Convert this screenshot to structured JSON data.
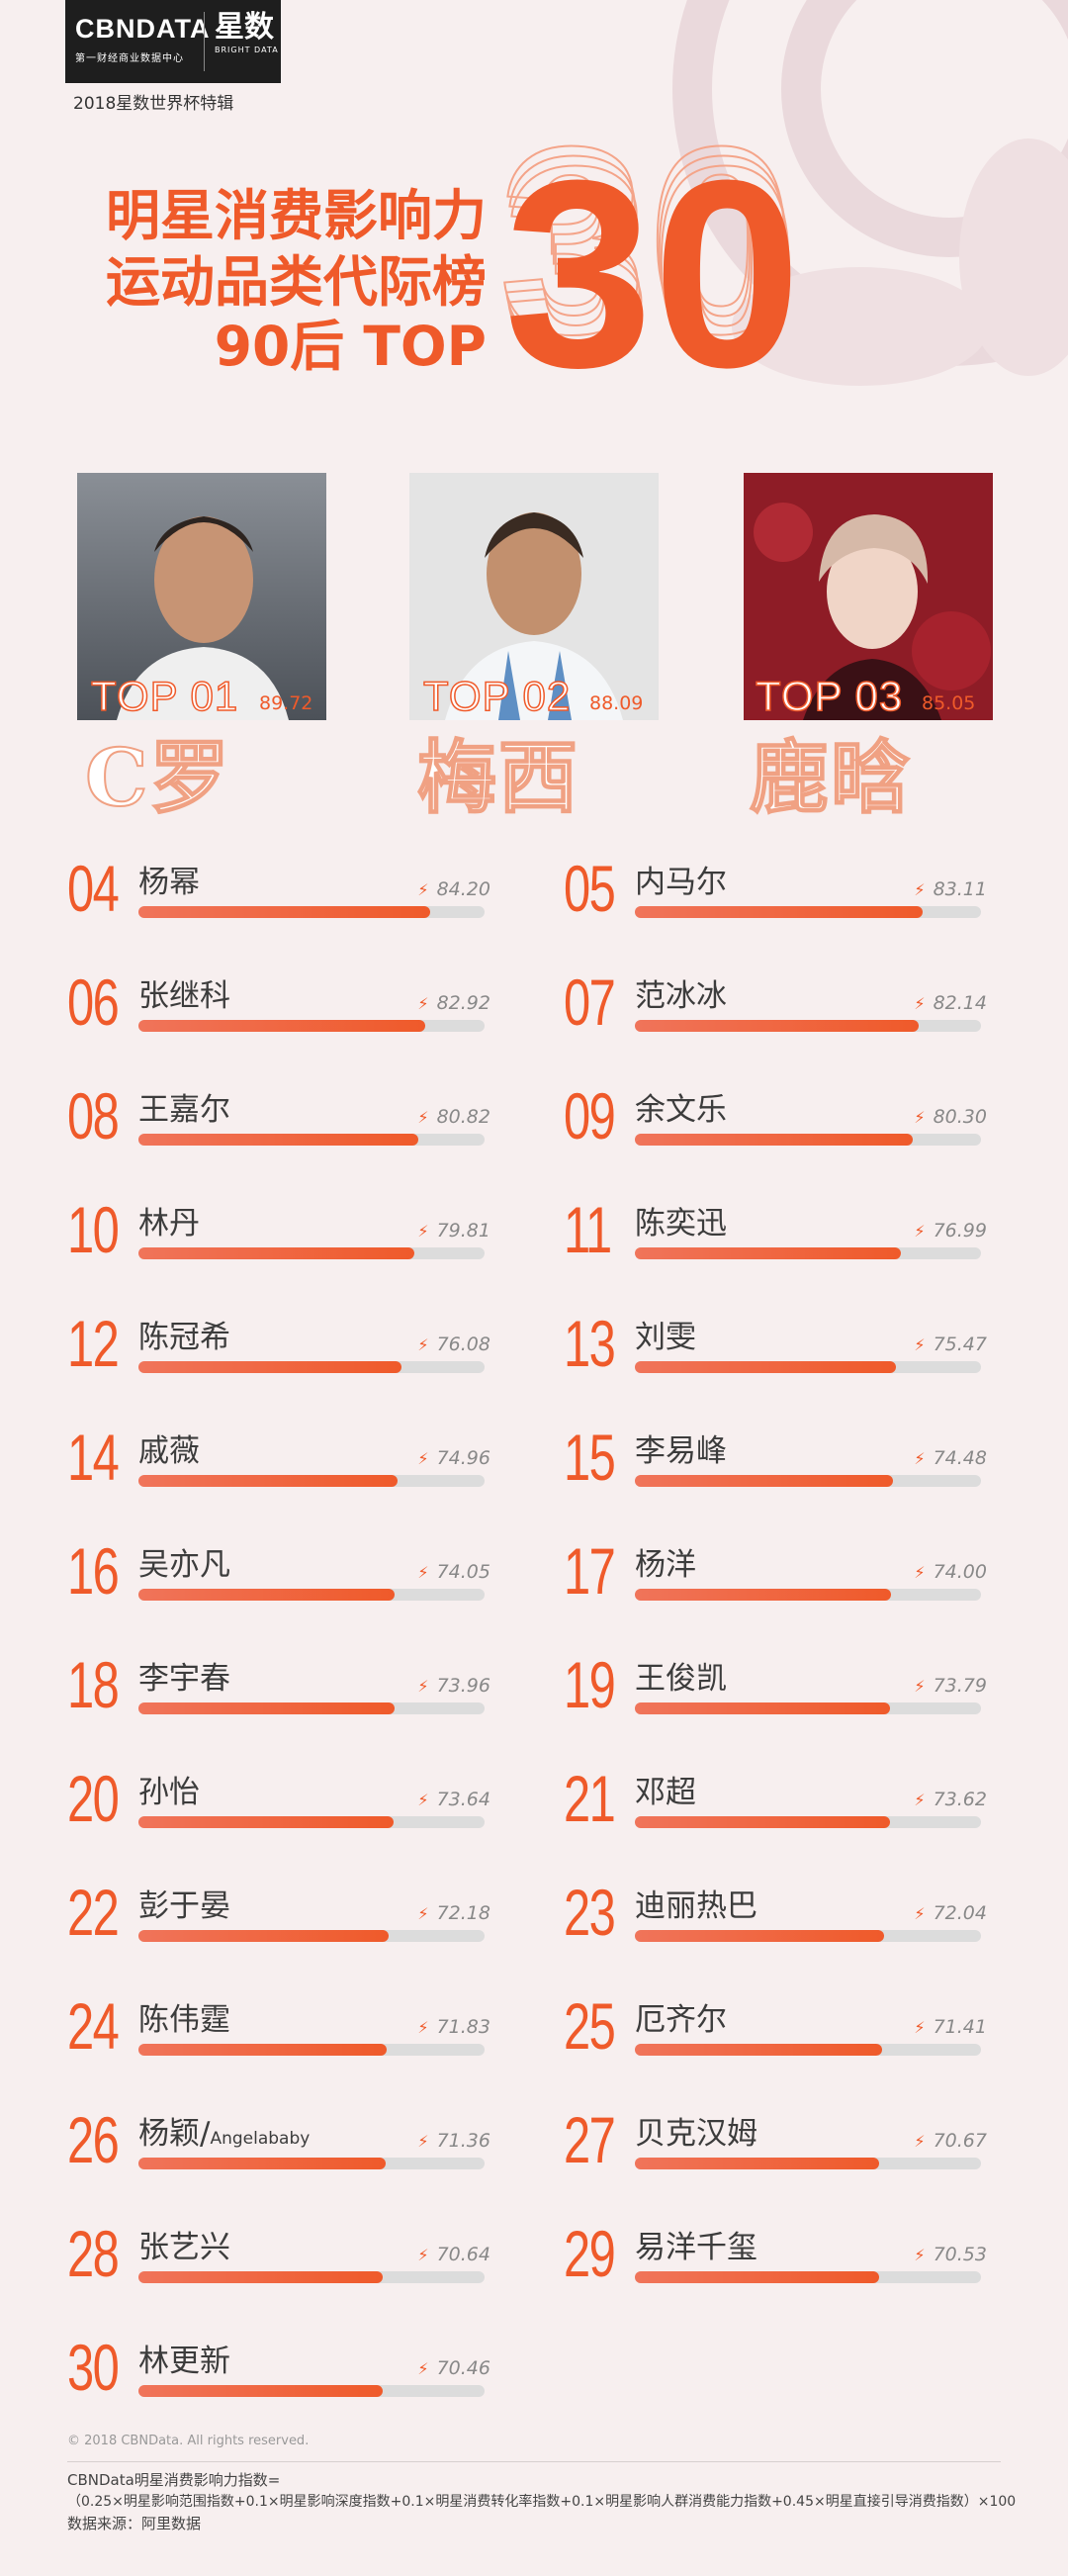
{
  "header": {
    "logo_name": "CBNDATA",
    "logo_sub": "第一财经商业数据中心",
    "logo_cn": "星数",
    "logo_en": "BRIGHT DATA",
    "edition": "2018星数世界杯特辑",
    "title_lines": [
      "明星消费影响力",
      "运动品类代际榜",
      "90后 TOP"
    ],
    "big_number": "30"
  },
  "top3": [
    {
      "rank": "TOP 01",
      "score": "89.72",
      "name": "C罗",
      "value": 89.72
    },
    {
      "rank": "TOP 02",
      "score": "88.09",
      "name": "梅西",
      "value": 88.09
    },
    {
      "rank": "TOP 03",
      "score": "85.05",
      "name": "鹿晗",
      "value": 85.05
    }
  ],
  "ranking": [
    {
      "rank": "04",
      "name": "杨幂",
      "name_sub": "",
      "score": "84.20",
      "value": 84.2
    },
    {
      "rank": "05",
      "name": "内马尔",
      "name_sub": "",
      "score": "83.11",
      "value": 83.11
    },
    {
      "rank": "06",
      "name": "张继科",
      "name_sub": "",
      "score": "82.92",
      "value": 82.92
    },
    {
      "rank": "07",
      "name": "范冰冰",
      "name_sub": "",
      "score": "82.14",
      "value": 82.14
    },
    {
      "rank": "08",
      "name": "王嘉尔",
      "name_sub": "",
      "score": "80.82",
      "value": 80.82
    },
    {
      "rank": "09",
      "name": "余文乐",
      "name_sub": "",
      "score": "80.30",
      "value": 80.3
    },
    {
      "rank": "10",
      "name": "林丹",
      "name_sub": "",
      "score": "79.81",
      "value": 79.81
    },
    {
      "rank": "11",
      "name": "陈奕迅",
      "name_sub": "",
      "score": "76.99",
      "value": 76.99
    },
    {
      "rank": "12",
      "name": "陈冠希",
      "name_sub": "",
      "score": "76.08",
      "value": 76.08
    },
    {
      "rank": "13",
      "name": "刘雯",
      "name_sub": "",
      "score": "75.47",
      "value": 75.47
    },
    {
      "rank": "14",
      "name": "戚薇",
      "name_sub": "",
      "score": "74.96",
      "value": 74.96
    },
    {
      "rank": "15",
      "name": "李易峰",
      "name_sub": "",
      "score": "74.48",
      "value": 74.48
    },
    {
      "rank": "16",
      "name": "吴亦凡",
      "name_sub": "",
      "score": "74.05",
      "value": 74.05
    },
    {
      "rank": "17",
      "name": "杨洋",
      "name_sub": "",
      "score": "74.00",
      "value": 74.0
    },
    {
      "rank": "18",
      "name": "李宇春",
      "name_sub": "",
      "score": "73.96",
      "value": 73.96
    },
    {
      "rank": "19",
      "name": "王俊凯",
      "name_sub": "",
      "score": "73.79",
      "value": 73.79
    },
    {
      "rank": "20",
      "name": "孙怡",
      "name_sub": "",
      "score": "73.64",
      "value": 73.64
    },
    {
      "rank": "21",
      "name": "邓超",
      "name_sub": "",
      "score": "73.62",
      "value": 73.62
    },
    {
      "rank": "22",
      "name": "彭于晏",
      "name_sub": "",
      "score": "72.18",
      "value": 72.18
    },
    {
      "rank": "23",
      "name": "迪丽热巴",
      "name_sub": "",
      "score": "72.04",
      "value": 72.04
    },
    {
      "rank": "24",
      "name": "陈伟霆",
      "name_sub": "",
      "score": "71.83",
      "value": 71.83
    },
    {
      "rank": "25",
      "name": "厄齐尔",
      "name_sub": "",
      "score": "71.41",
      "value": 71.41
    },
    {
      "rank": "26",
      "name": "杨颖/",
      "name_sub": "Angelababy",
      "score": "71.36",
      "value": 71.36
    },
    {
      "rank": "27",
      "name": "贝克汉姆",
      "name_sub": "",
      "score": "70.67",
      "value": 70.67
    },
    {
      "rank": "28",
      "name": "张艺兴",
      "name_sub": "",
      "score": "70.64",
      "value": 70.64
    },
    {
      "rank": "29",
      "name": "易洋千玺",
      "name_sub": "",
      "score": "70.53",
      "value": 70.53
    },
    {
      "rank": "30",
      "name": "林更新",
      "name_sub": "",
      "score": "70.46",
      "value": 70.46
    }
  ],
  "footer": {
    "copyright": "© 2018 CBNData. All rights reserved.",
    "formula_title": "CBNData明星消费影响力指数=",
    "formula": "（0.25×明星影响范围指数+0.1×明星影响深度指数+0.1×明星消费转化率指数+0.1×明星影响人群消费能力指数+0.45×明星直接引导消费指数）×100",
    "source": "数据来源：阿里数据"
  },
  "colors": {
    "accent": "#ef5a2a",
    "background": "#f7efef",
    "track": "#dcdcdc",
    "outline": "#f0a183"
  },
  "icons": {
    "score_marker": "lightning-bolt-icon"
  }
}
